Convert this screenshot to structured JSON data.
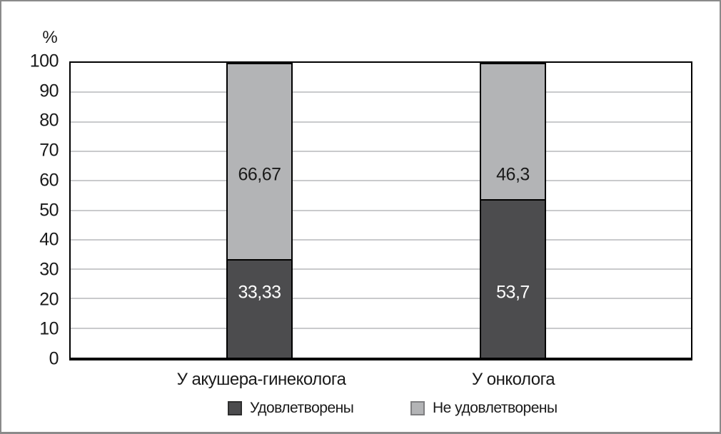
{
  "chart_data": {
    "type": "bar",
    "stacked": true,
    "title": "",
    "xlabel": "",
    "ylabel": "%",
    "ylim": [
      0,
      100
    ],
    "yticks": [
      0,
      10,
      20,
      30,
      40,
      50,
      60,
      70,
      80,
      90,
      100
    ],
    "grid": true,
    "legend_position": "bottom",
    "categories": [
      "У акушера-гинеколога",
      "У онколога"
    ],
    "series": [
      {
        "name": "Удовлетворены",
        "color": "#4c4c4e",
        "label_color": "#ffffff",
        "values": [
          33.33,
          53.7
        ],
        "value_labels": [
          "33,33",
          "53,7"
        ]
      },
      {
        "name": "Не удовлетворены",
        "color": "#b3b4b6",
        "label_color": "#1a1a1a",
        "values": [
          66.67,
          46.3
        ],
        "value_labels": [
          "66,67",
          "46,3"
        ]
      }
    ],
    "colors": {
      "figure_border": "#8a8a8a",
      "plot_border": "#000000",
      "gridline": "#c9cacc",
      "background": "#ffffff"
    }
  }
}
